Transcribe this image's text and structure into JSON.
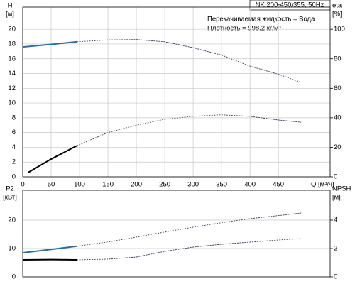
{
  "chart_data": [
    {
      "type": "line",
      "title": "NK 200-450/355, 50Hz",
      "annotations": [
        "Перекачиваемая жидкость = Вода",
        "Плотность = 998.2 кг/м³"
      ],
      "ylabel": "H",
      "yunit": "[м]",
      "y2label": "eta",
      "y2unit": "[%]",
      "xlabel": "Q [м³/ч]",
      "xlim": [
        0,
        541
      ],
      "xticks": [
        0,
        50,
        100,
        150,
        200,
        250,
        300,
        350,
        400,
        450
      ],
      "ylim": [
        0,
        23
      ],
      "yticks": [
        0,
        2,
        4,
        6,
        8,
        10,
        12,
        14,
        16,
        18,
        20
      ],
      "y2lim": [
        0,
        115
      ],
      "y2ticks": [
        0,
        20,
        40,
        60,
        80,
        100
      ],
      "grid": true,
      "series": [
        {
          "color": "#2e6da4",
          "style": "solid",
          "x": [
            0,
            50,
            95
          ],
          "values": [
            17.6,
            17.95,
            18.3
          ]
        },
        {
          "color": "#333a55",
          "style": "dashed",
          "x": [
            95,
            150,
            200,
            250,
            300,
            350,
            400,
            450,
            490
          ],
          "values": [
            18.3,
            18.55,
            18.6,
            18.3,
            17.5,
            16.5,
            15.0,
            13.9,
            12.8
          ]
        },
        {
          "color": "#000000",
          "style": "solid",
          "axis": "y2",
          "x": [
            10,
            50,
            95
          ],
          "values": [
            3,
            12,
            21
          ]
        },
        {
          "color": "#333a55",
          "style": "dashed",
          "axis": "y2",
          "x": [
            95,
            150,
            200,
            250,
            300,
            350,
            400,
            450,
            490
          ],
          "values": [
            21,
            30,
            35,
            39,
            41,
            42,
            41,
            38.5,
            37
          ]
        }
      ]
    },
    {
      "type": "line",
      "ylabel": "P2",
      "yunit": "[кВт]",
      "y2label": "NPSH",
      "y2unit": "[м]",
      "xlim": [
        0,
        541
      ],
      "ylim": [
        0,
        30.5
      ],
      "yticks": [
        0,
        10,
        20
      ],
      "y2lim": [
        0,
        6.1
      ],
      "y2ticks": [
        0,
        2,
        4
      ],
      "grid": true,
      "series": [
        {
          "color": "#2e6da4",
          "style": "solid",
          "x": [
            0,
            50,
            95
          ],
          "values": [
            8.5,
            9.7,
            10.8
          ]
        },
        {
          "color": "#333a55",
          "style": "dashed",
          "x": [
            95,
            150,
            200,
            250,
            300,
            350,
            400,
            450,
            490
          ],
          "values": [
            10.8,
            12.3,
            14,
            15.8,
            17.5,
            19.1,
            20.5,
            21.6,
            22.5
          ]
        },
        {
          "color": "#000000",
          "style": "solid",
          "axis": "y2",
          "x": [
            0,
            50,
            95
          ],
          "values": [
            1.2,
            1.22,
            1.2
          ]
        },
        {
          "color": "#333a55",
          "style": "dashed",
          "axis": "y2",
          "x": [
            95,
            150,
            200,
            250,
            300,
            350,
            400,
            450,
            490
          ],
          "values": [
            1.2,
            1.25,
            1.4,
            1.8,
            2.1,
            2.3,
            2.45,
            2.6,
            2.7
          ]
        }
      ]
    }
  ]
}
